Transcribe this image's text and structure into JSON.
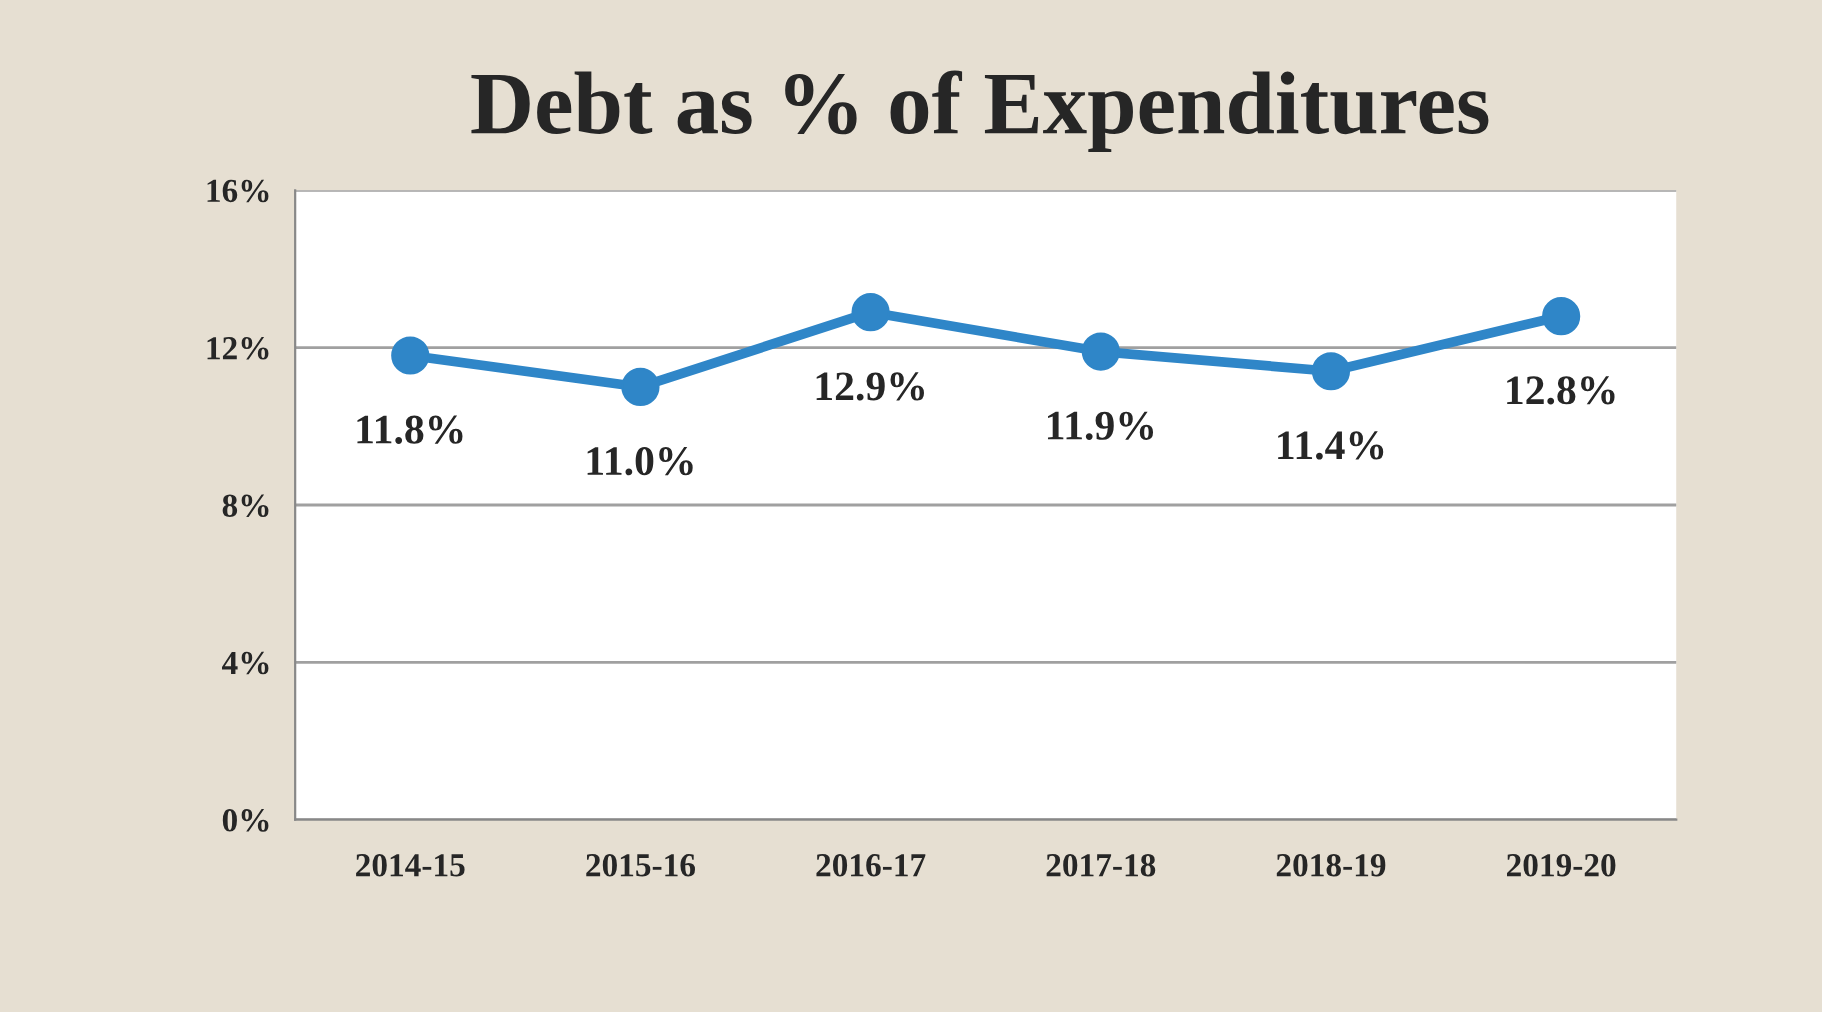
{
  "chart_data": {
    "type": "line",
    "title": "Debt as % of Expenditures",
    "categories": [
      "2014-15",
      "2015-16",
      "2016-17",
      "2017-18",
      "2018-19",
      "2019-20"
    ],
    "series": [
      {
        "color": "#2f86c8",
        "values": [
          11.8,
          11.0,
          12.9,
          11.9,
          11.4,
          12.8
        ],
        "value_labels": [
          "11.8%",
          "11.0%",
          "12.9%",
          "11.9%",
          "11.4%",
          "12.8%"
        ]
      }
    ],
    "ylim": [
      0,
      16
    ],
    "yticks": [
      {
        "value": 0,
        "label": "0%"
      },
      {
        "value": 4,
        "label": "4%"
      },
      {
        "value": 8,
        "label": "8%"
      },
      {
        "value": 12,
        "label": "12%"
      },
      {
        "value": 16,
        "label": "16%"
      }
    ],
    "grid": "y",
    "marker": "circle",
    "line_style": "solid",
    "legend": false
  }
}
